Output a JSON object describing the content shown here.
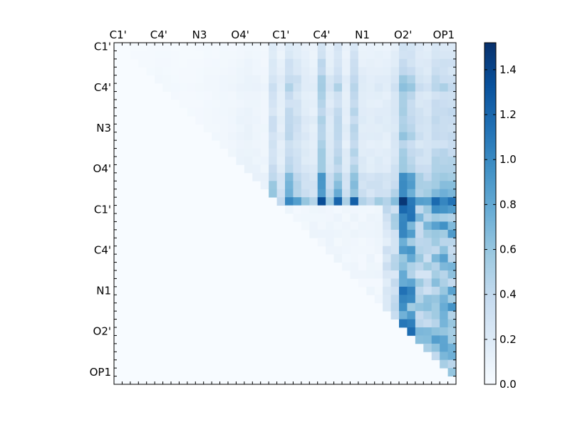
{
  "chart_data": {
    "type": "heatmap",
    "title": "",
    "xlabel": "",
    "ylabel": "",
    "n": 42,
    "x_tick_labels": [
      "C1'",
      "C4'",
      "N3",
      "O4'",
      "C1'",
      "C4'",
      "N1",
      "O2'",
      "OP1"
    ],
    "y_tick_labels": [
      "C1'",
      "C4'",
      "N3",
      "O4'",
      "C1'",
      "C4'",
      "N1",
      "O2'",
      "OP1"
    ],
    "colorbar": {
      "range": [
        0.0,
        1.52
      ],
      "ticks": [
        0.0,
        0.2,
        0.4,
        0.6,
        0.8,
        1.0,
        1.2,
        1.4
      ],
      "tick_labels": [
        "0.0",
        "0.2",
        "0.4",
        "0.6",
        "0.8",
        "1.0",
        "1.2",
        "1.4"
      ],
      "colormap": "Blues"
    },
    "upper_triangle_only": true,
    "column_profile": [
      0.0,
      0.0,
      0.05,
      0.05,
      0.06,
      0.08,
      0.07,
      0.06,
      0.05,
      0.05,
      0.06,
      0.08,
      0.08,
      0.1,
      0.12,
      0.15,
      0.18,
      0.15,
      0.12,
      0.55,
      0.3,
      0.72,
      0.55,
      0.35,
      0.3,
      0.95,
      0.4,
      0.72,
      0.3,
      0.78,
      0.32,
      0.3,
      0.32,
      0.3,
      0.45,
      1.0,
      0.85,
      0.55,
      0.5,
      0.7,
      0.75,
      0.7
    ],
    "row_profile": [
      0.2,
      0.22,
      0.25,
      0.28,
      0.35,
      0.38,
      0.3,
      0.3,
      0.32,
      0.35,
      0.35,
      0.35,
      0.3,
      0.35,
      0.38,
      0.4,
      0.55,
      0.6,
      0.6,
      0.95,
      0.95,
      0.9,
      0.95,
      0.95,
      0.7,
      0.75,
      0.8,
      0.8,
      0.7,
      0.75,
      0.85,
      0.85,
      0.9,
      0.8,
      0.9,
      0.95,
      0.9,
      0.85,
      0.8,
      0.6,
      0.6,
      0.5
    ],
    "low_block_start": 20,
    "low_block_value": 0.06,
    "low_block_dense_columns_start": 33
  }
}
